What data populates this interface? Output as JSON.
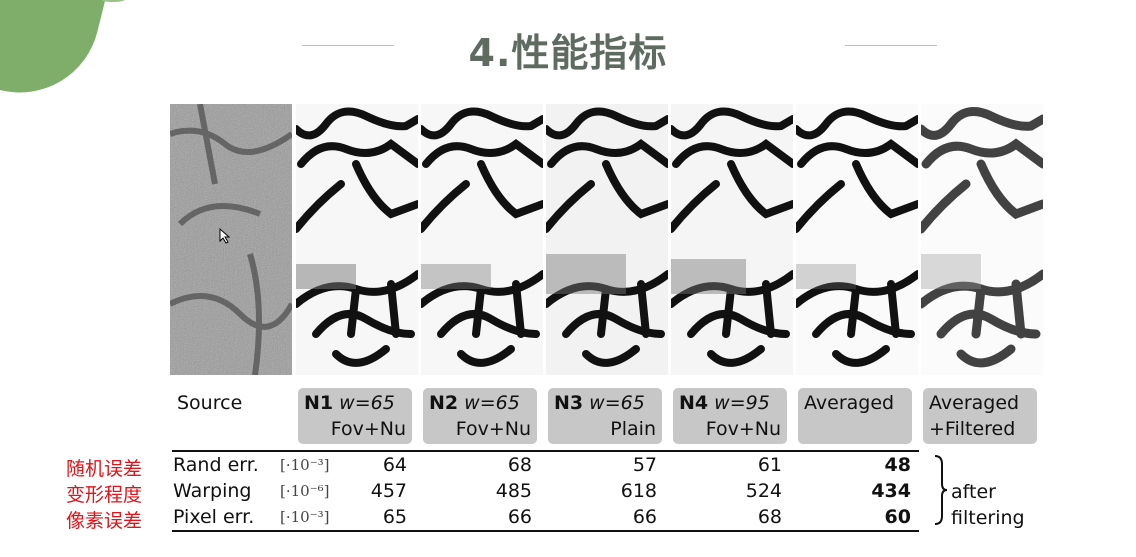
{
  "slide": {
    "title": "4.性能指标"
  },
  "figure": {
    "source_label": "Source",
    "panels": [
      {
        "name": "N1",
        "param": "w=65",
        "method": "Fov+Nu"
      },
      {
        "name": "N2",
        "param": "w=65",
        "method": "Fov+Nu"
      },
      {
        "name": "N3",
        "param": "w=65",
        "method": "Plain"
      },
      {
        "name": "N4",
        "param": "w=95",
        "method": "Fov+Nu"
      },
      {
        "name": "",
        "param": "",
        "method": "Averaged"
      },
      {
        "name": "",
        "param": "Averaged",
        "method": "+Filtered"
      }
    ]
  },
  "table": {
    "rows": [
      {
        "cn": "随机误差",
        "name": "Rand err.",
        "unit": "[·10⁻³]",
        "values": [
          "64",
          "68",
          "57",
          "61",
          "48"
        ]
      },
      {
        "cn": "变形程度",
        "name": "Warping",
        "unit": "[·10⁻⁶]",
        "values": [
          "457",
          "485",
          "618",
          "524",
          "434"
        ]
      },
      {
        "cn": "像素误差",
        "name": "Pixel err.",
        "unit": "[·10⁻³]",
        "values": [
          "65",
          "66",
          "66",
          "68",
          "60"
        ]
      }
    ],
    "after_filtering": [
      "after",
      "filtering"
    ]
  }
}
